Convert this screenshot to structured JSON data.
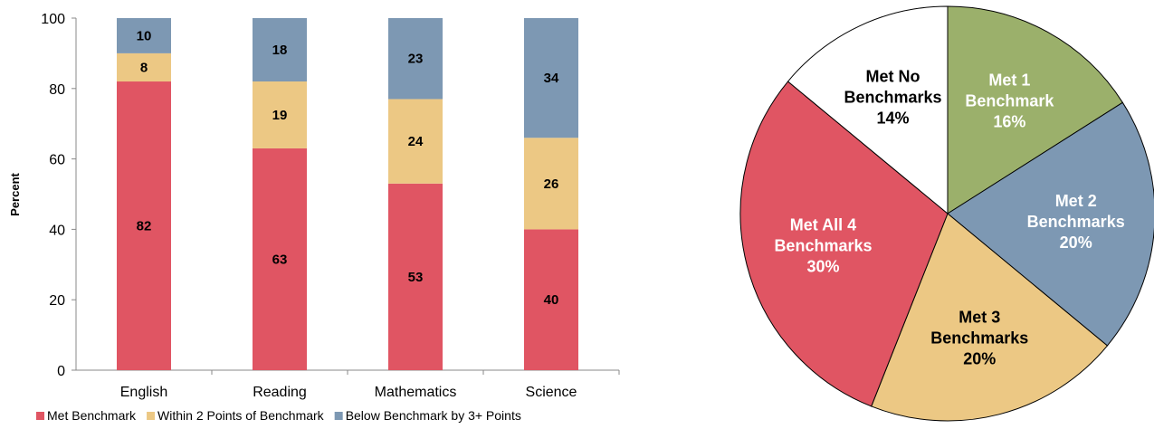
{
  "chart_data": [
    {
      "type": "bar",
      "stacked": true,
      "categories": [
        "English",
        "Reading",
        "Mathematics",
        "Science"
      ],
      "series": [
        {
          "name": "Met Benchmark",
          "color": "#E05563",
          "values": [
            82,
            63,
            53,
            40
          ]
        },
        {
          "name": "Within 2 Points of Benchmark",
          "color": "#ECC884",
          "values": [
            8,
            19,
            24,
            26
          ]
        },
        {
          "name": "Below Benchmark by 3+ Points",
          "color": "#7D98B3",
          "values": [
            10,
            18,
            23,
            34
          ]
        }
      ],
      "ylabel": "Percent",
      "ylim": [
        0,
        100
      ],
      "yticks": [
        "0",
        "20",
        "40",
        "60",
        "80",
        "100"
      ],
      "grid": false,
      "legend": "bottom"
    },
    {
      "type": "pie",
      "slices": [
        {
          "lines": [
            "Met 1",
            "Benchmark",
            "16%"
          ],
          "value": 16,
          "color": "#9BB06B",
          "text_color": "#ffffff"
        },
        {
          "lines": [
            "Met 2",
            "Benchmarks",
            "20%"
          ],
          "value": 20,
          "color": "#7D98B3",
          "text_color": "#ffffff"
        },
        {
          "lines": [
            "Met 3",
            "Benchmarks",
            "20%"
          ],
          "value": 20,
          "color": "#ECC884",
          "text_color": "#000000"
        },
        {
          "lines": [
            "Met All 4",
            "Benchmarks",
            "30%"
          ],
          "value": 30,
          "color": "#E05563",
          "text_color": "#ffffff"
        },
        {
          "lines": [
            "Met No",
            "Benchmarks",
            "14%"
          ],
          "value": 14,
          "color": "#ffffff",
          "text_color": "#000000"
        }
      ]
    }
  ]
}
